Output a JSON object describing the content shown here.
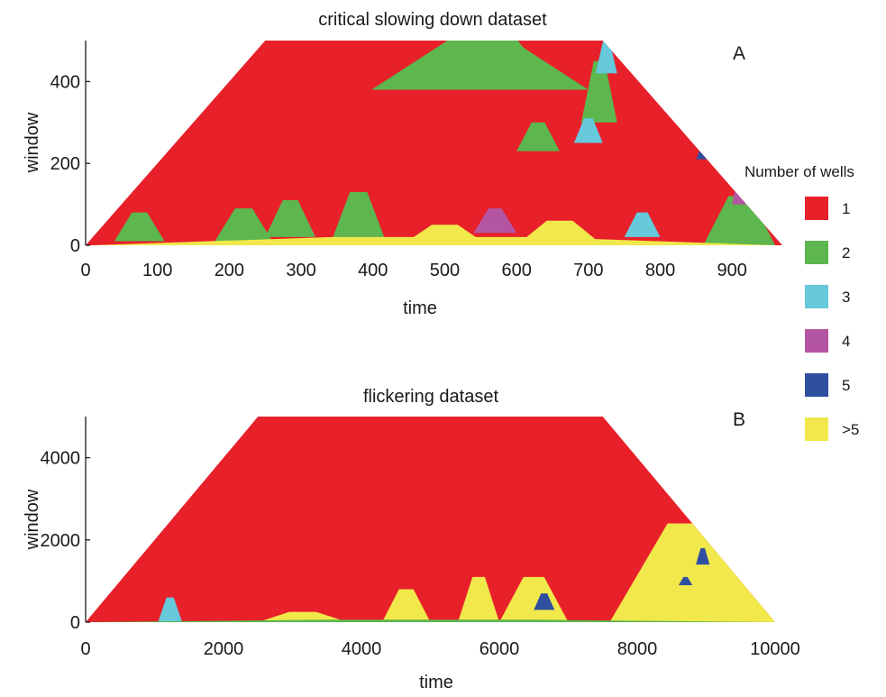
{
  "legend": {
    "title": "Number of wells",
    "items": [
      {
        "label": "1",
        "color": "#e8202a"
      },
      {
        "label": "2",
        "color": "#5db64e"
      },
      {
        "label": "3",
        "color": "#66c9dc"
      },
      {
        "label": "4",
        "color": "#b455a1"
      },
      {
        "label": "5",
        "color": "#2f4fa0"
      },
      {
        "label": ">5",
        "color": "#f1e84b"
      }
    ]
  },
  "chart_data": [
    {
      "type": "heatmap",
      "title": "critical slowing down dataset",
      "panel_label": "A",
      "xlabel": "time",
      "ylabel": "window",
      "xlim": [
        0,
        970
      ],
      "ylim": [
        0,
        500
      ],
      "xticks": [
        0,
        100,
        200,
        300,
        400,
        500,
        600,
        700,
        800,
        900
      ],
      "yticks": [
        0,
        200,
        400
      ],
      "background_category": "1",
      "valid_region": {
        "shape": "trapezoid",
        "bottom_x": [
          0,
          970
        ],
        "top_x": [
          250,
          720
        ],
        "top_y": 500
      },
      "regions": [
        {
          "category": "2",
          "x": [
            398,
            700
          ],
          "y": [
            380,
            500
          ]
        },
        {
          "category": "2",
          "x": [
            530,
            640
          ],
          "y": [
            420,
            500
          ]
        },
        {
          "category": "2",
          "x": [
            690,
            740
          ],
          "y": [
            300,
            450
          ]
        },
        {
          "category": "2",
          "x": [
            600,
            660
          ],
          "y": [
            230,
            300
          ]
        },
        {
          "category": "2",
          "x": [
            340,
            420
          ],
          "y": [
            0,
            130
          ]
        },
        {
          "category": "2",
          "x": [
            250,
            320
          ],
          "y": [
            20,
            110
          ]
        },
        {
          "category": "2",
          "x": [
            180,
            260
          ],
          "y": [
            10,
            90
          ]
        },
        {
          "category": "2",
          "x": [
            40,
            110
          ],
          "y": [
            10,
            80
          ]
        },
        {
          "category": "2",
          "x": [
            860,
            960
          ],
          "y": [
            0,
            120
          ]
        },
        {
          "category": "3",
          "x": [
            710,
            740
          ],
          "y": [
            420,
            500
          ]
        },
        {
          "category": "3",
          "x": [
            680,
            720
          ],
          "y": [
            250,
            310
          ]
        },
        {
          "category": "3",
          "x": [
            750,
            800
          ],
          "y": [
            20,
            80
          ]
        },
        {
          "category": "4",
          "x": [
            540,
            600
          ],
          "y": [
            30,
            90
          ]
        },
        {
          "category": "4",
          "x": [
            900,
            920
          ],
          "y": [
            100,
            160
          ]
        },
        {
          "category": "5",
          "x": [
            850,
            870
          ],
          "y": [
            210,
            240
          ]
        },
        {
          "category": ">5",
          "x": [
            10,
            960
          ],
          "y": [
            0,
            20
          ]
        },
        {
          "category": ">5",
          "x": [
            440,
            560
          ],
          "y": [
            0,
            50
          ]
        },
        {
          "category": ">5",
          "x": [
            600,
            720
          ],
          "y": [
            0,
            60
          ]
        }
      ]
    },
    {
      "type": "heatmap",
      "title": "flickering dataset",
      "panel_label": "B",
      "xlabel": "time",
      "ylabel": "window",
      "xlim": [
        0,
        10000
      ],
      "ylim": [
        0,
        5000
      ],
      "xticks": [
        0,
        2000,
        4000,
        6000,
        8000,
        10000
      ],
      "yticks": [
        0,
        2000,
        4000
      ],
      "background_category": "1",
      "valid_region": {
        "shape": "trapezoid",
        "bottom_x": [
          0,
          10000
        ],
        "top_x": [
          2500,
          7500
        ],
        "top_y": 5000
      },
      "regions": [
        {
          "category": ">5",
          "x": [
            7600,
            10000
          ],
          "y": [
            0,
            2400
          ]
        },
        {
          "category": "5",
          "x": [
            8850,
            9050
          ],
          "y": [
            1400,
            1800
          ]
        },
        {
          "category": "5",
          "x": [
            8600,
            8800
          ],
          "y": [
            900,
            1100
          ]
        },
        {
          "category": ">5",
          "x": [
            4300,
            5000
          ],
          "y": [
            0,
            800
          ]
        },
        {
          "category": ">5",
          "x": [
            5400,
            6000
          ],
          "y": [
            0,
            1100
          ]
        },
        {
          "category": ">5",
          "x": [
            6000,
            7000
          ],
          "y": [
            0,
            1100
          ]
        },
        {
          "category": "5",
          "x": [
            6500,
            6800
          ],
          "y": [
            300,
            700
          ]
        },
        {
          "category": "3",
          "x": [
            1050,
            1400
          ],
          "y": [
            0,
            600
          ]
        },
        {
          "category": ">5",
          "x": [
            2500,
            3800
          ],
          "y": [
            0,
            250
          ]
        },
        {
          "category": "2",
          "x": [
            0,
            10000
          ],
          "y": [
            0,
            60
          ]
        }
      ]
    }
  ]
}
